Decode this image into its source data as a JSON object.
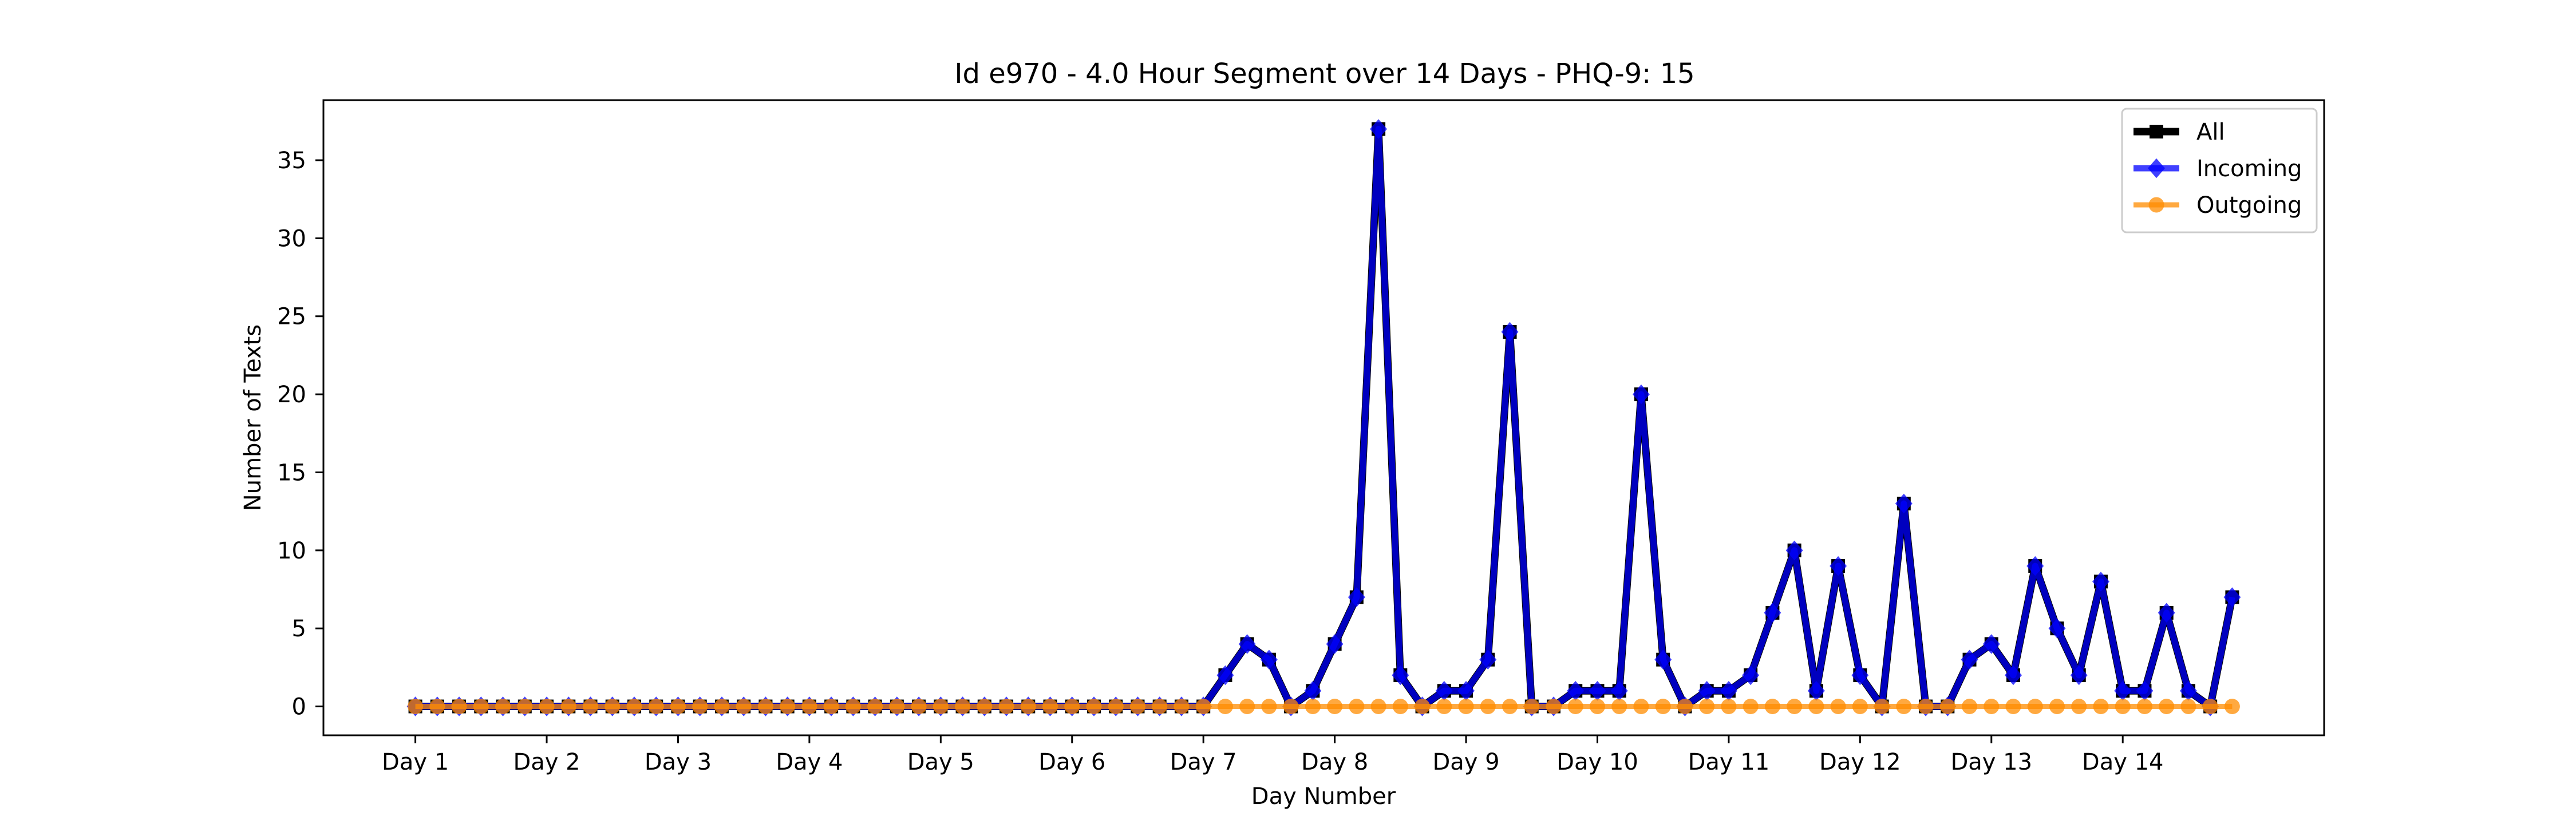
{
  "chart_data": {
    "type": "line",
    "title": "Id e970 - 4.0 Hour Segment over 14 Days - PHQ-9: 15",
    "xlabel": "Day Number",
    "ylabel": "Number of Texts",
    "x_tick_labels": [
      "Day 1",
      "Day 2",
      "Day 3",
      "Day 4",
      "Day 5",
      "Day 6",
      "Day 7",
      "Day 8",
      "Day 9",
      "Day 10",
      "Day 11",
      "Day 12",
      "Day 13",
      "Day 14"
    ],
    "y_ticks": [
      0,
      5,
      10,
      15,
      20,
      25,
      30,
      35
    ],
    "ylim": [
      -1.85,
      38.85
    ],
    "xlim": [
      -4.2,
      87.2
    ],
    "grid": false,
    "legend_position": "top-right",
    "series": [
      {
        "name": "All",
        "color": "#000000",
        "marker": "square",
        "values": [
          0,
          0,
          0,
          0,
          0,
          0,
          0,
          0,
          0,
          0,
          0,
          0,
          0,
          0,
          0,
          0,
          0,
          0,
          0,
          0,
          0,
          0,
          0,
          0,
          0,
          0,
          0,
          0,
          0,
          0,
          0,
          0,
          0,
          0,
          0,
          0,
          0,
          2,
          4,
          3,
          0,
          1,
          4,
          7,
          37,
          2,
          0,
          1,
          1,
          3,
          24,
          0,
          0,
          1,
          1,
          1,
          20,
          3,
          0,
          1,
          1,
          2,
          6,
          10,
          1,
          9,
          2,
          0,
          13,
          0,
          0,
          3,
          4,
          2,
          9,
          5,
          2,
          8,
          1,
          1,
          6,
          1,
          0,
          7
        ]
      },
      {
        "name": "Incoming",
        "color": "#0000ff",
        "marker": "diamond",
        "values": [
          0,
          0,
          0,
          0,
          0,
          0,
          0,
          0,
          0,
          0,
          0,
          0,
          0,
          0,
          0,
          0,
          0,
          0,
          0,
          0,
          0,
          0,
          0,
          0,
          0,
          0,
          0,
          0,
          0,
          0,
          0,
          0,
          0,
          0,
          0,
          0,
          0,
          2,
          4,
          3,
          0,
          1,
          4,
          7,
          37,
          2,
          0,
          1,
          1,
          3,
          24,
          0,
          0,
          1,
          1,
          1,
          20,
          3,
          0,
          1,
          1,
          2,
          6,
          10,
          1,
          9,
          2,
          0,
          13,
          0,
          0,
          3,
          4,
          2,
          9,
          5,
          2,
          8,
          1,
          1,
          6,
          1,
          0,
          7
        ]
      },
      {
        "name": "Outgoing",
        "color": "#ff8c00",
        "marker": "circle",
        "values": [
          0,
          0,
          0,
          0,
          0,
          0,
          0,
          0,
          0,
          0,
          0,
          0,
          0,
          0,
          0,
          0,
          0,
          0,
          0,
          0,
          0,
          0,
          0,
          0,
          0,
          0,
          0,
          0,
          0,
          0,
          0,
          0,
          0,
          0,
          0,
          0,
          0,
          0,
          0,
          0,
          0,
          0,
          0,
          0,
          0,
          0,
          0,
          0,
          0,
          0,
          0,
          0,
          0,
          0,
          0,
          0,
          0,
          0,
          0,
          0,
          0,
          0,
          0,
          0,
          0,
          0,
          0,
          0,
          0,
          0,
          0,
          0,
          0,
          0,
          0,
          0,
          0,
          0,
          0,
          0,
          0,
          0,
          0,
          0
        ]
      }
    ]
  }
}
